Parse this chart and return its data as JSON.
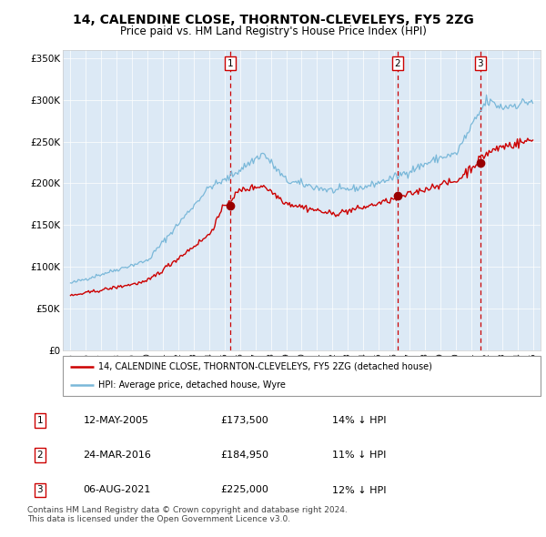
{
  "title": "14, CALENDINE CLOSE, THORNTON-CLEVELEYS, FY5 2ZG",
  "subtitle": "Price paid vs. HM Land Registry's House Price Index (HPI)",
  "title_fontsize": 10.5,
  "subtitle_fontsize": 8.5,
  "bg_color": "#dce9f5",
  "line_color_hpi": "#7ab8d9",
  "line_color_price": "#cc0000",
  "dot_color": "#990000",
  "dashed_color": "#cc0000",
  "ylim": [
    0,
    360000
  ],
  "yticks": [
    0,
    50000,
    100000,
    150000,
    200000,
    250000,
    300000,
    350000
  ],
  "ytick_labels": [
    "£0",
    "£50K",
    "£100K",
    "£150K",
    "£200K",
    "£250K",
    "£300K",
    "£350K"
  ],
  "xlim_start": 1994.5,
  "xlim_end": 2025.5,
  "xticks": [
    1995,
    1996,
    1997,
    1998,
    1999,
    2000,
    2001,
    2002,
    2003,
    2004,
    2005,
    2006,
    2007,
    2008,
    2009,
    2010,
    2011,
    2012,
    2013,
    2014,
    2015,
    2016,
    2017,
    2018,
    2019,
    2020,
    2021,
    2022,
    2023,
    2024,
    2025
  ],
  "sale_dates": [
    2005.36,
    2016.23,
    2021.59
  ],
  "sale_prices": [
    173500,
    184950,
    225000
  ],
  "sale_labels": [
    "1",
    "2",
    "3"
  ],
  "footnote": "Contains HM Land Registry data © Crown copyright and database right 2024.\nThis data is licensed under the Open Government Licence v3.0.",
  "legend_line1": "14, CALENDINE CLOSE, THORNTON-CLEVELEYS, FY5 2ZG (detached house)",
  "legend_line2": "HPI: Average price, detached house, Wyre",
  "table_rows": [
    {
      "num": "1",
      "date": "12-MAY-2005",
      "price": "£173,500",
      "hpi": "14% ↓ HPI"
    },
    {
      "num": "2",
      "date": "24-MAR-2016",
      "price": "£184,950",
      "hpi": "11% ↓ HPI"
    },
    {
      "num": "3",
      "date": "06-AUG-2021",
      "price": "£225,000",
      "hpi": "12% ↓ HPI"
    }
  ]
}
